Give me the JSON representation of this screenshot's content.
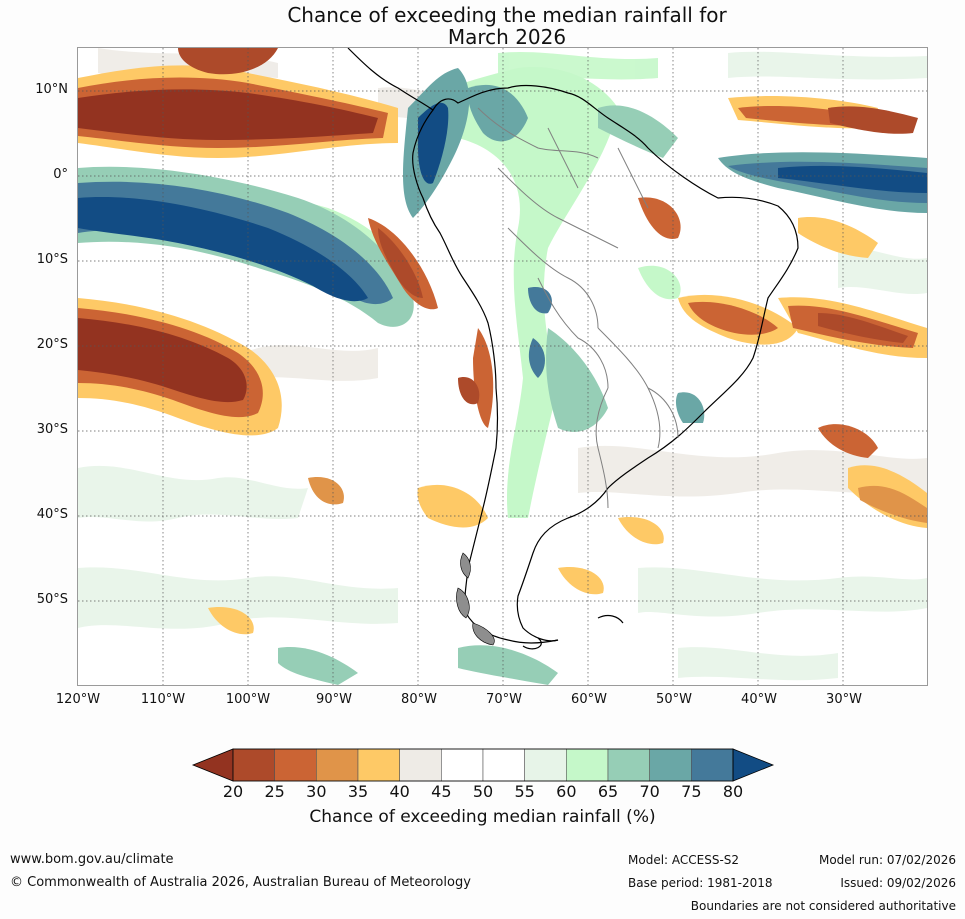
{
  "title_line1": "Chance of exceeding the median rainfall for",
  "title_line2": "March 2026",
  "lat_labels": [
    "10°N",
    "0°",
    "10°S",
    "20°S",
    "30°S",
    "40°S",
    "50°S"
  ],
  "lon_labels": [
    "120°W",
    "110°W",
    "100°W",
    "90°W",
    "80°W",
    "70°W",
    "60°W",
    "50°W",
    "40°W",
    "30°W"
  ],
  "legend": {
    "ticks": [
      "20",
      "25",
      "30",
      "35",
      "40",
      "45",
      "50",
      "55",
      "60",
      "65",
      "70",
      "75",
      "80"
    ],
    "colors": [
      "#933320",
      "#ad4a2a",
      "#cb6434",
      "#e09449",
      "#fec966",
      "#eeebe6",
      "#ffffff",
      "#ffffff",
      "#e7f4e8",
      "#c5f8c9",
      "#96ceb6",
      "#6aa7a6",
      "#44799a",
      "#124c84"
    ],
    "caption": "Chance of exceeding median rainfall (%)"
  },
  "footer": {
    "url": "www.bom.gov.au/climate",
    "copyright": "© Commonwealth of Australia 2026, Australian Bureau of Meteorology",
    "model": "Model: ACCESS-S2",
    "base_period": "Base period: 1981-2018",
    "model_run": "Model run: 07/02/2026",
    "issued": "Issued: 09/02/2026",
    "disclaimer": "Boundaries are not considered authoritative"
  }
}
